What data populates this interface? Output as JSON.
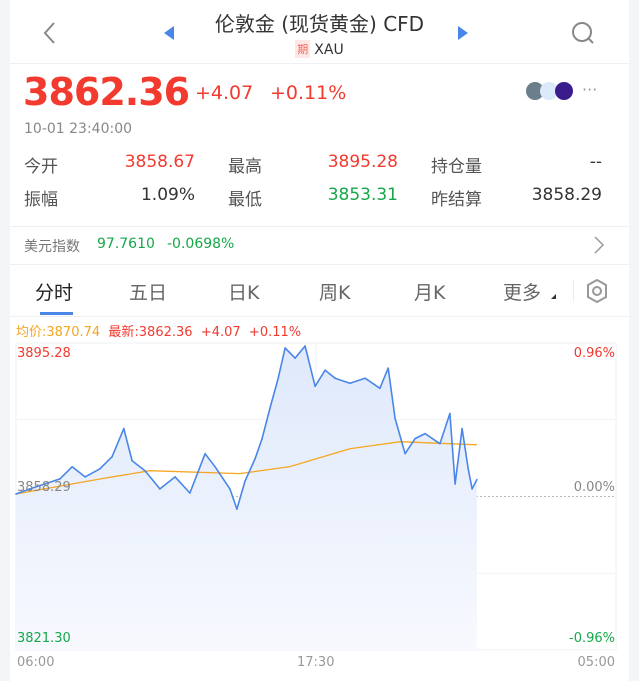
{
  "header": {
    "title": "伦敦金 (现货黄金) CFD",
    "badge": "期",
    "symbol": "XAU"
  },
  "quote": {
    "price": "3862.36",
    "change": "+4.07",
    "change_pct": "+0.11%",
    "timestamp": "10-01 23:40:00"
  },
  "stats": [
    {
      "label": "今开",
      "value": "3858.67",
      "color": "red"
    },
    {
      "label": "最高",
      "value": "3895.28",
      "color": "red"
    },
    {
      "label": "持仓量",
      "value": "--",
      "color": "dark"
    },
    {
      "label": "振幅",
      "value": "1.09%",
      "color": "dark"
    },
    {
      "label": "最低",
      "value": "3853.31",
      "color": "green"
    },
    {
      "label": "昨结算",
      "value": "3858.29",
      "color": "dark"
    }
  ],
  "related": {
    "label": "美元指数",
    "value": "97.7610",
    "change": "-0.0698%"
  },
  "tabs": [
    {
      "label": "分时",
      "active": true
    },
    {
      "label": "五日"
    },
    {
      "label": "日K"
    },
    {
      "label": "周K"
    },
    {
      "label": "月K"
    },
    {
      "label": "更多"
    }
  ],
  "chart_data": {
    "type": "line",
    "legend": {
      "avg_label": "均价:3870.74",
      "last_label": "最新:3862.36",
      "change": "+4.07",
      "change_pct": "+0.11%"
    },
    "ylim": [
      3821.3,
      3895.28
    ],
    "base": 3858.29,
    "y_labels": {
      "top": "3895.28",
      "mid": "3858.29",
      "bottom": "3821.30",
      "top_pct": "0.96%",
      "mid_pct": "0.00%",
      "bottom_pct": "-0.96%"
    },
    "x_ticks": [
      "06:00",
      "17:30",
      "05:00"
    ],
    "x_range": [
      "06:00",
      "05:00"
    ],
    "colors": {
      "price": "#4a86e8",
      "avg": "#f5a623",
      "up": "#f23a2f",
      "down": "#15a849"
    },
    "series": [
      {
        "t": "06:00",
        "v": 3858.9
      },
      {
        "t": "06:32",
        "v": 3860.11
      },
      {
        "t": "07:07",
        "v": 3861.32
      },
      {
        "t": "07:41",
        "v": 3862.53
      },
      {
        "t": "08:09",
        "v": 3865.45
      },
      {
        "t": "08:39",
        "v": 3863.02
      },
      {
        "t": "09:13",
        "v": 3864.96
      },
      {
        "t": "09:41",
        "v": 3867.87
      },
      {
        "t": "10:08",
        "v": 3874.66
      },
      {
        "t": "10:27",
        "v": 3866.9
      },
      {
        "t": "10:57",
        "v": 3864.47
      },
      {
        "t": "11:31",
        "v": 3860.11
      },
      {
        "t": "12:06",
        "v": 3863.02
      },
      {
        "t": "12:40",
        "v": 3859.14
      },
      {
        "t": "13:15",
        "v": 3868.6
      },
      {
        "t": "13:38",
        "v": 3865.45
      },
      {
        "t": "14:12",
        "v": 3860.11
      },
      {
        "t": "14:28",
        "v": 3855.26
      },
      {
        "t": "14:47",
        "v": 3862.05
      },
      {
        "t": "15:10",
        "v": 3867.39
      },
      {
        "t": "15:26",
        "v": 3872.24
      },
      {
        "t": "15:44",
        "v": 3879.51
      },
      {
        "t": "16:03",
        "v": 3886.79
      },
      {
        "t": "16:19",
        "v": 3894.07
      },
      {
        "t": "16:42",
        "v": 3891.64
      },
      {
        "t": "17:05",
        "v": 3894.55
      },
      {
        "t": "17:28",
        "v": 3884.85
      },
      {
        "t": "17:51",
        "v": 3888.73
      },
      {
        "t": "18:14",
        "v": 3886.79
      },
      {
        "t": "18:48",
        "v": 3885.58
      },
      {
        "t": "19:23",
        "v": 3886.79
      },
      {
        "t": "19:57",
        "v": 3884.36
      },
      {
        "t": "20:16",
        "v": 3889.22
      },
      {
        "t": "20:32",
        "v": 3877.09
      },
      {
        "t": "20:55",
        "v": 3868.6
      },
      {
        "t": "21:18",
        "v": 3872.24
      },
      {
        "t": "21:41",
        "v": 3873.45
      },
      {
        "t": "22:15",
        "v": 3871.02
      },
      {
        "t": "22:38",
        "v": 3878.3
      },
      {
        "t": "22:50",
        "v": 3861.32
      },
      {
        "t": "23:06",
        "v": 3874.66
      },
      {
        "t": "23:20",
        "v": 3864.96
      },
      {
        "t": "23:29",
        "v": 3860.11
      },
      {
        "t": "23:40",
        "v": 3862.36
      }
    ],
    "avg_series": [
      {
        "t": "06:00",
        "v": 3858.9
      },
      {
        "t": "09:13",
        "v": 3862.5
      },
      {
        "t": "11:08",
        "v": 3864.5
      },
      {
        "t": "14:35",
        "v": 3863.8
      },
      {
        "t": "16:30",
        "v": 3865.5
      },
      {
        "t": "18:48",
        "v": 3869.8
      },
      {
        "t": "20:44",
        "v": 3871.5
      },
      {
        "t": "23:40",
        "v": 3870.74
      }
    ]
  }
}
